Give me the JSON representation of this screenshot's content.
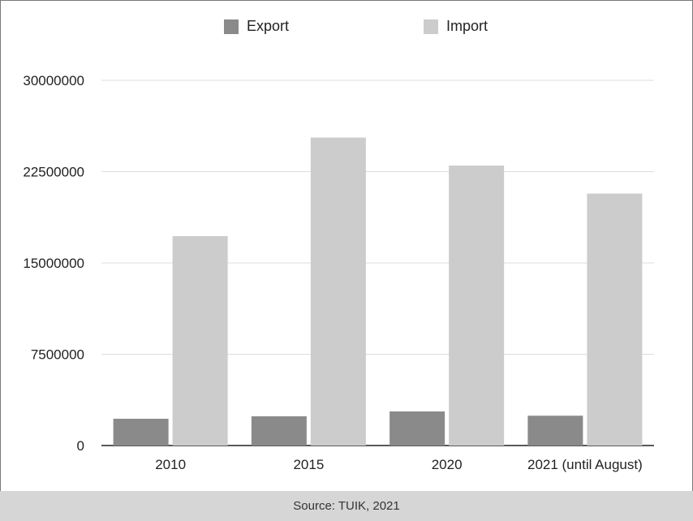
{
  "chart_data": {
    "type": "bar",
    "categories": [
      "2010",
      "2015",
      "2020",
      "2021 (until August)"
    ],
    "series": [
      {
        "name": "Export",
        "values": [
          2200000,
          2400000,
          2800000,
          2450000
        ],
        "color": "#8a8a8a"
      },
      {
        "name": "Import",
        "values": [
          17200000,
          25300000,
          23000000,
          20700000
        ],
        "color": "#cccccc"
      }
    ],
    "yticks": [
      "0",
      "7500000",
      "15000000",
      "22500000",
      "30000000"
    ],
    "ylim": [
      0,
      30000000
    ],
    "grid": true,
    "legend_position": "top-center"
  },
  "source": "Source: TUIK, 2021"
}
